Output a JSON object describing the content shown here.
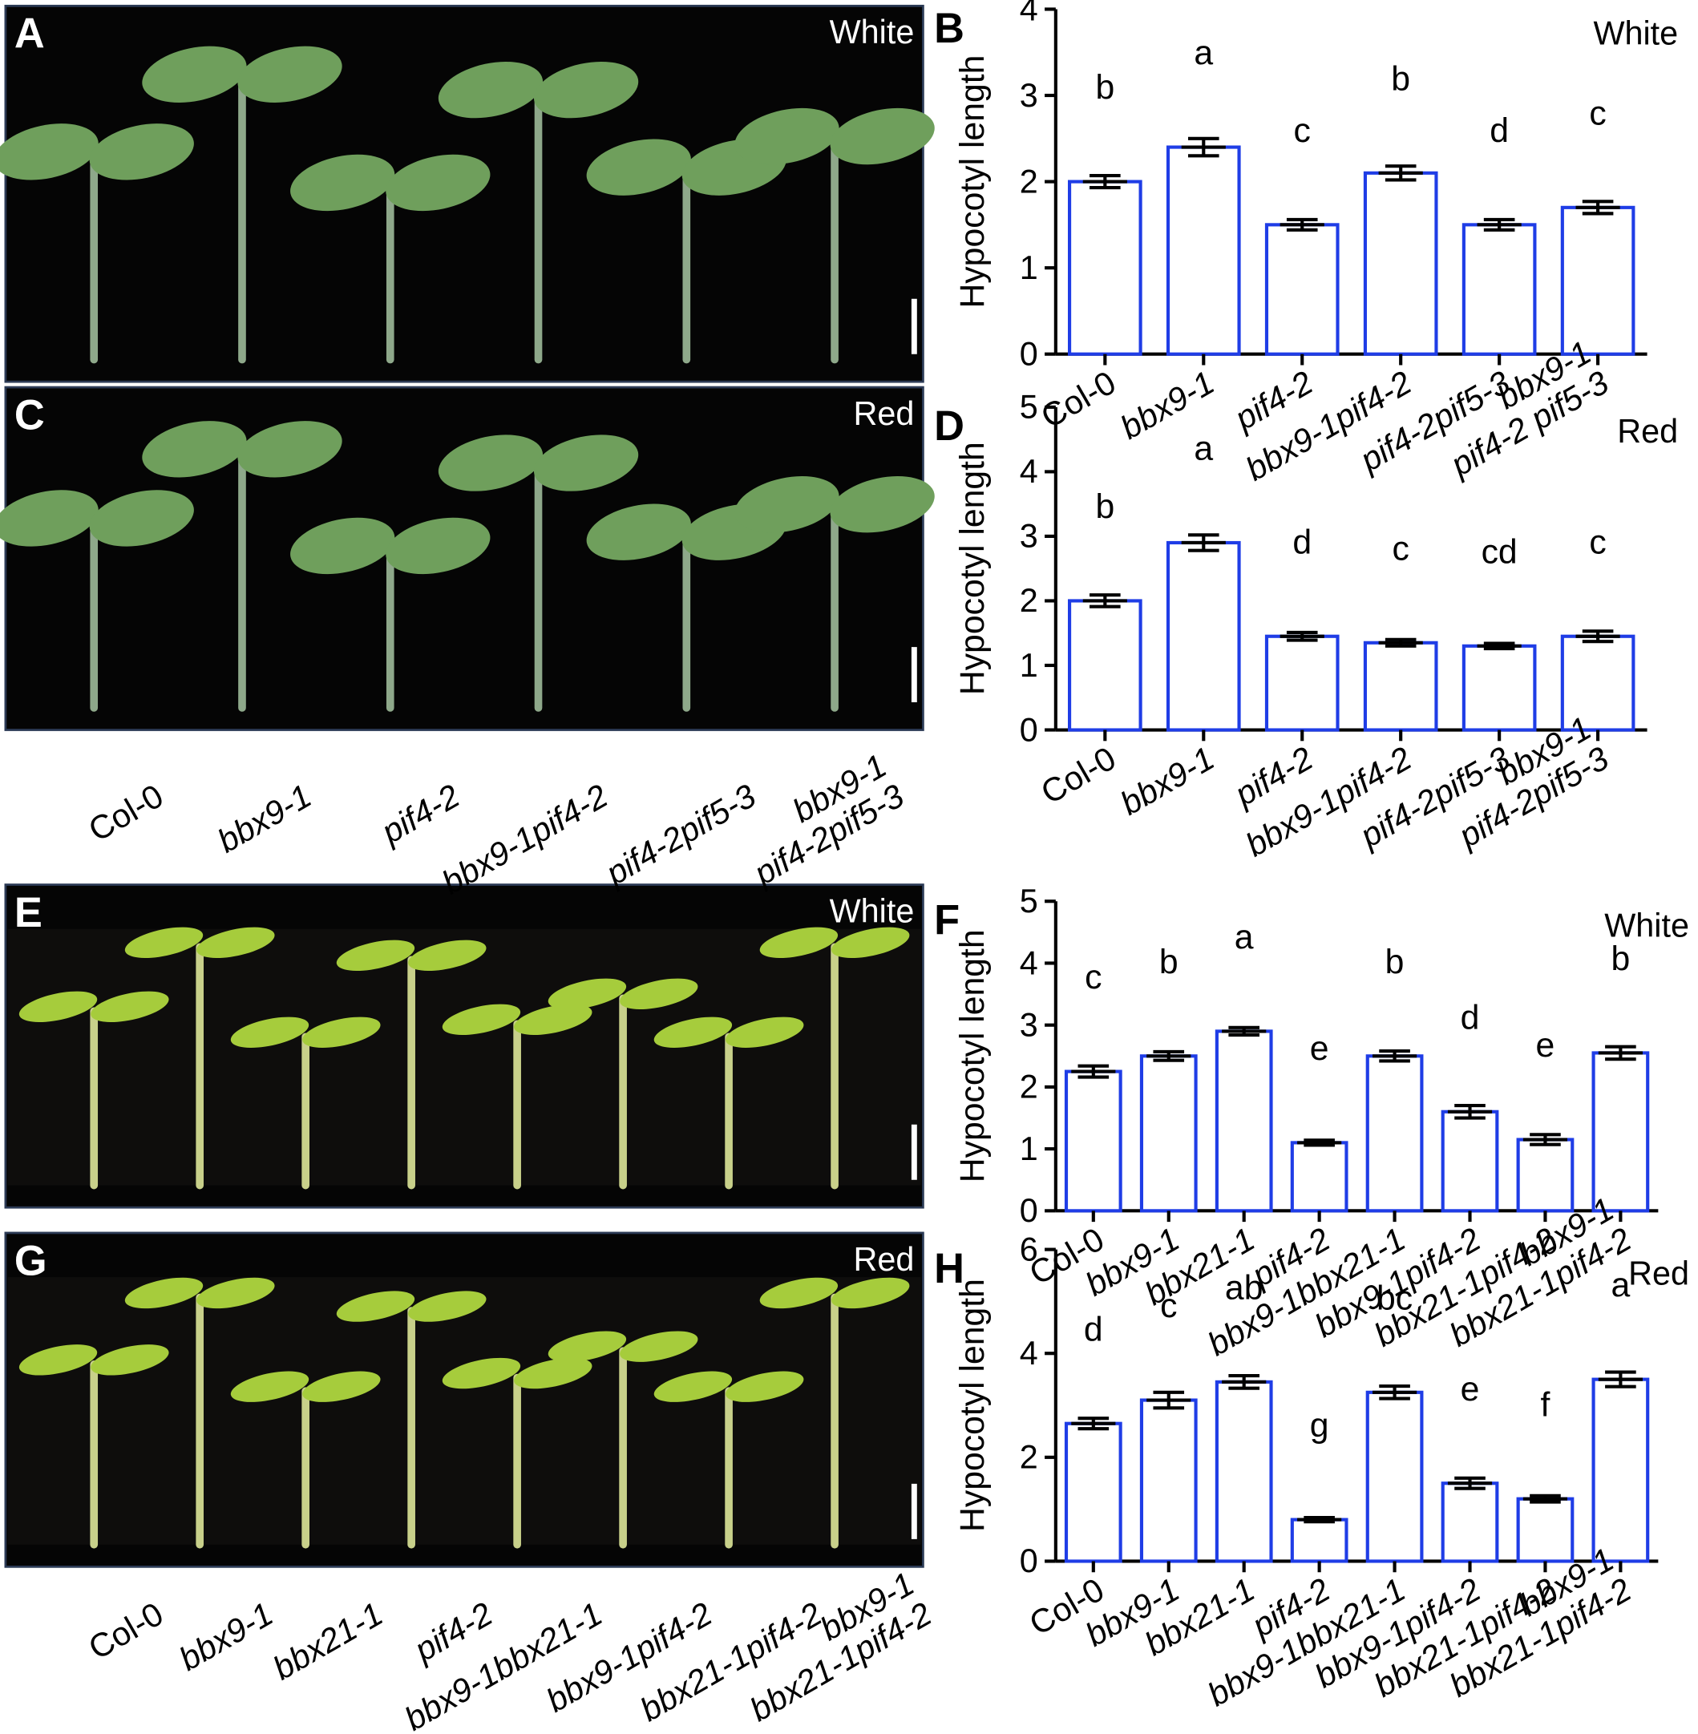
{
  "photos": [
    {
      "panel": "A",
      "light": "White"
    },
    {
      "panel": "C",
      "light": "Red"
    },
    {
      "panel": "E",
      "light": "White"
    },
    {
      "panel": "G",
      "light": "Red"
    }
  ],
  "chart_data": [
    {
      "type": "bar",
      "panel": "B",
      "light": "White",
      "ylabel": "Hypocotyl length",
      "categories": [
        "Col-0",
        "bbx9-1",
        "pif4-2",
        "bbx9-1pif4-2",
        "pif4-2pif5-3",
        "bbx9-1\npif4-2 pif5-3"
      ],
      "values": [
        2.0,
        2.4,
        1.5,
        2.1,
        1.5,
        1.7
      ],
      "errors": [
        0.07,
        0.1,
        0.06,
        0.08,
        0.06,
        0.07
      ],
      "letters": [
        "b",
        "a",
        "c",
        "b",
        "d",
        "c"
      ],
      "color": "#1f3de6",
      "ylim": [
        0,
        4
      ],
      "yticks": [
        0,
        1,
        2,
        3,
        4
      ]
    },
    {
      "type": "bar",
      "panel": "D",
      "light": "Red",
      "ylabel": "Hypocotyl length",
      "categories": [
        "Col-0",
        "bbx9-1",
        "pif4-2",
        "bbx9-1pif4-2",
        "pif4-2pif5-3",
        "bbx9-1\npif4-2pif5-3"
      ],
      "values": [
        2.0,
        2.9,
        1.45,
        1.35,
        1.3,
        1.45
      ],
      "errors": [
        0.09,
        0.12,
        0.06,
        0.05,
        0.04,
        0.08
      ],
      "letters": [
        "b",
        "a",
        "d",
        "c",
        "cd",
        "c"
      ],
      "color": "#1f3de6",
      "ylim": [
        0,
        5
      ],
      "yticks": [
        0,
        1,
        2,
        3,
        4,
        5
      ]
    },
    {
      "type": "bar",
      "panel": "F",
      "light": "White",
      "ylabel": "Hypocotyl length",
      "categories": [
        "Col-0",
        "bbx9-1",
        "bbx21-1",
        "pif4-2",
        "bbx9-1bbx21-1",
        "bbx9-1pif4-2",
        "bbx21-1pif4-2",
        "bbx9-1\nbbx21-1pif4-2"
      ],
      "values": [
        2.25,
        2.5,
        2.9,
        1.1,
        2.5,
        1.6,
        1.15,
        2.55
      ],
      "errors": [
        0.09,
        0.07,
        0.06,
        0.04,
        0.08,
        0.1,
        0.08,
        0.1
      ],
      "letters": [
        "c",
        "b",
        "a",
        "e",
        "b",
        "d",
        "e",
        "b"
      ],
      "color": "#1f3de6",
      "ylim": [
        0,
        5
      ],
      "yticks": [
        0,
        1,
        2,
        3,
        4,
        5
      ]
    },
    {
      "type": "bar",
      "panel": "H",
      "light": "Red",
      "ylabel": "Hypocotyl length",
      "categories": [
        "Col-0",
        "bbx9-1",
        "bbx21-1",
        "pif4-2",
        "bbx9-1bbx21-1",
        "bbx9-1pif4-2",
        "bbx21-1pif4-2",
        "bbx9-1\nbbx21-1pif4-2"
      ],
      "values": [
        2.65,
        3.1,
        3.45,
        0.8,
        3.25,
        1.5,
        1.2,
        3.5
      ],
      "errors": [
        0.1,
        0.15,
        0.12,
        0.04,
        0.12,
        0.1,
        0.06,
        0.14
      ],
      "letters": [
        "d",
        "c",
        "ab",
        "g",
        "bc",
        "e",
        "f",
        "a"
      ],
      "color": "#1f3de6",
      "ylim": [
        0,
        6
      ],
      "yticks": [
        0,
        2,
        4,
        6
      ]
    }
  ]
}
